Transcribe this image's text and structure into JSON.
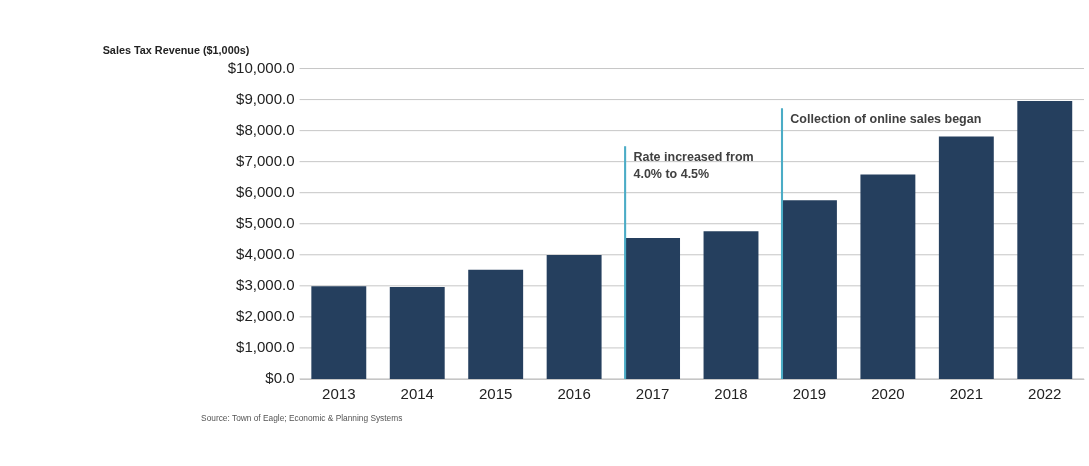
{
  "chart_data": {
    "type": "bar",
    "title": "Sales Tax Revenue ($1,000s)",
    "categories": [
      "2013",
      "2014",
      "2015",
      "2016",
      "2017",
      "2018",
      "2019",
      "2020",
      "2021",
      "2022"
    ],
    "values": [
      2990,
      2960,
      3520,
      3990,
      4540,
      4760,
      5760,
      6590,
      7810,
      8950
    ],
    "color": "#253f5e",
    "ylim": [
      0,
      10000
    ],
    "yticks": [
      {
        "value": 0,
        "label": "$0.0"
      },
      {
        "value": 1000,
        "label": "$1,000.0"
      },
      {
        "value": 2000,
        "label": "$2,000.0"
      },
      {
        "value": 3000,
        "label": "$3,000.0"
      },
      {
        "value": 4000,
        "label": "$4,000.0"
      },
      {
        "value": 5000,
        "label": "$5,000.0"
      },
      {
        "value": 6000,
        "label": "$6,000.0"
      },
      {
        "value": 7000,
        "label": "$7,000.0"
      },
      {
        "value": 8000,
        "label": "$8,000.0"
      },
      {
        "value": 9000,
        "label": "$9,000.0"
      },
      {
        "value": 10000,
        "label": "$10,000.0"
      }
    ],
    "grid": "y",
    "ref_lines": [
      {
        "axis": "x",
        "value": "2017",
        "label": "Rate increased from\n4.0% to 4.5%",
        "color": "#4bacc6"
      },
      {
        "axis": "x",
        "value": "2019",
        "label": "Collection of online sales began",
        "color": "#4bacc6"
      }
    ],
    "annotations": [
      "Source: Town of Eagle; Economic & Planning Systems"
    ]
  }
}
